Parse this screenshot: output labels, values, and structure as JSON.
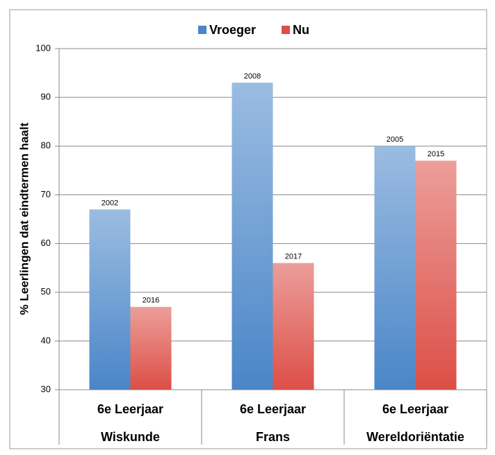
{
  "chart_data": {
    "type": "bar",
    "ylabel": "% Leerlingen dat eindtermen haalt",
    "categories": [
      [
        "6e Leerjaar",
        "Wiskunde"
      ],
      [
        "6e Leerjaar",
        "Frans"
      ],
      [
        "6e Leerjaar",
        "Wereldoriëntatie"
      ]
    ],
    "series": [
      {
        "name": "Vroeger",
        "color": "#4a86c8",
        "values": [
          67,
          93,
          80
        ],
        "point_labels": [
          "2002",
          "2008",
          "2005"
        ]
      },
      {
        "name": "Nu",
        "color": "#dc4f47",
        "values": [
          47,
          56,
          77
        ],
        "point_labels": [
          "2016",
          "2017",
          "2015"
        ]
      }
    ],
    "ylim": [
      30,
      100
    ],
    "yticks": [
      30,
      40,
      50,
      60,
      70,
      80,
      90,
      100
    ],
    "grid": true,
    "legend": "top"
  }
}
